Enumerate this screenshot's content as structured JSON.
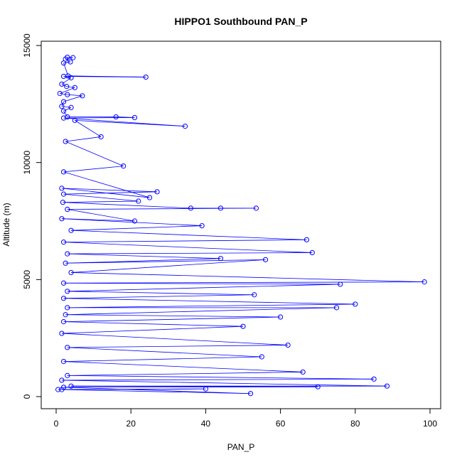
{
  "chart_data": {
    "type": "line",
    "title": "HIPPO1 Southbound PAN_P",
    "xlabel": "PAN_P",
    "ylabel": "Altitude (m)",
    "xlim": [
      0,
      100
    ],
    "ylim": [
      0,
      15000
    ],
    "x_ticks": [
      0,
      20,
      40,
      60,
      80,
      100
    ],
    "y_ticks": [
      0,
      5000,
      10000,
      15000
    ],
    "grid": false,
    "legend": "none",
    "colors": {
      "series": "#0000ff",
      "axes": "#000000"
    },
    "series": [
      {
        "values": [
          [
            3.0,
            14500
          ],
          [
            4.5,
            14480
          ],
          [
            2.5,
            14420
          ],
          [
            3.8,
            14300
          ],
          [
            2.0,
            14250
          ],
          [
            3.2,
            13700
          ],
          [
            24.0,
            13650
          ],
          [
            2.0,
            13680
          ],
          [
            4.0,
            13620
          ],
          [
            1.5,
            13350
          ],
          [
            2.8,
            13250
          ],
          [
            5.0,
            13200
          ],
          [
            1.0,
            12950
          ],
          [
            3.0,
            12900
          ],
          [
            7.0,
            12850
          ],
          [
            2.0,
            12600
          ],
          [
            1.5,
            12400
          ],
          [
            4.0,
            12350
          ],
          [
            2.0,
            12200
          ],
          [
            3.0,
            11950
          ],
          [
            16.0,
            11950
          ],
          [
            21.0,
            11920
          ],
          [
            2.0,
            11900
          ],
          [
            34.5,
            11550
          ],
          [
            5.0,
            11800
          ],
          [
            12.0,
            11100
          ],
          [
            2.5,
            10900
          ],
          [
            18.0,
            9850
          ],
          [
            2.0,
            9600
          ],
          [
            25.0,
            8500
          ],
          [
            1.5,
            8900
          ],
          [
            27.0,
            8750
          ],
          [
            2.0,
            8650
          ],
          [
            22.0,
            8350
          ],
          [
            1.8,
            8300
          ],
          [
            36.0,
            8050
          ],
          [
            44.0,
            8050
          ],
          [
            53.5,
            8050
          ],
          [
            3.0,
            8000
          ],
          [
            21.0,
            7500
          ],
          [
            1.5,
            7600
          ],
          [
            39.0,
            7300
          ],
          [
            4.0,
            7100
          ],
          [
            67.0,
            6700
          ],
          [
            2.0,
            6600
          ],
          [
            68.5,
            6150
          ],
          [
            3.0,
            6100
          ],
          [
            44.0,
            5900
          ],
          [
            2.5,
            5700
          ],
          [
            56.0,
            5850
          ],
          [
            4.0,
            5300
          ],
          [
            98.5,
            4900
          ],
          [
            2.0,
            4850
          ],
          [
            76.0,
            4800
          ],
          [
            3.0,
            4500
          ],
          [
            53.0,
            4350
          ],
          [
            2.0,
            4200
          ],
          [
            80.0,
            3950
          ],
          [
            3.0,
            3800
          ],
          [
            75.0,
            3800
          ],
          [
            2.5,
            3500
          ],
          [
            60.0,
            3400
          ],
          [
            2.0,
            3200
          ],
          [
            50.0,
            3000
          ],
          [
            1.5,
            2700
          ],
          [
            62.0,
            2200
          ],
          [
            3.0,
            2100
          ],
          [
            55.0,
            1700
          ],
          [
            2.0,
            1500
          ],
          [
            66.0,
            1050
          ],
          [
            3.0,
            900
          ],
          [
            85.0,
            750
          ],
          [
            1.5,
            700
          ],
          [
            88.5,
            450
          ],
          [
            4.0,
            450
          ],
          [
            70.0,
            420
          ],
          [
            2.0,
            400
          ],
          [
            52.0,
            130
          ],
          [
            1.5,
            300
          ],
          [
            40.0,
            330
          ],
          [
            0.5,
            300
          ]
        ]
      }
    ]
  }
}
